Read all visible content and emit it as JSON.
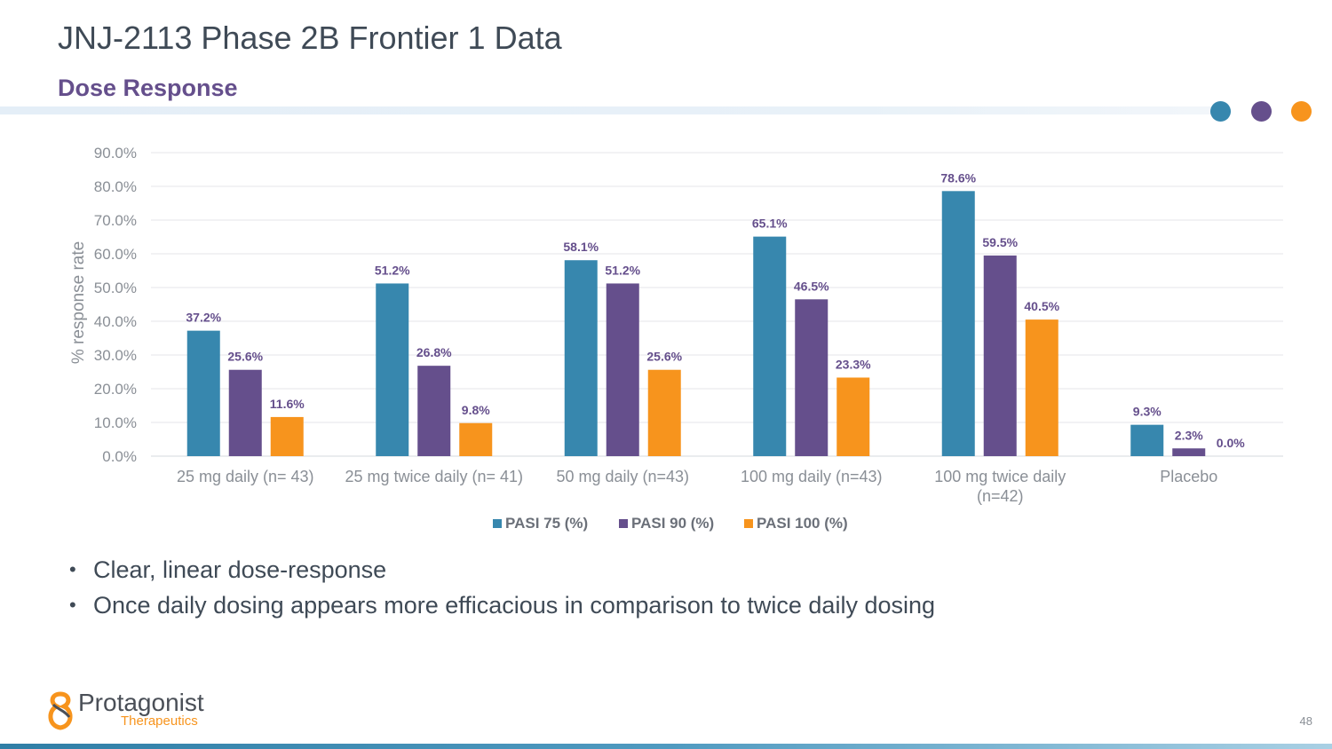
{
  "slide": {
    "title": "JNJ-2113 Phase 2B Frontier 1 Data",
    "subtitle": "Dose Response",
    "page_number": "48"
  },
  "bullets": [
    "Clear, linear dose-response",
    "Once daily dosing appears more efficacious in comparison to twice daily dosing"
  ],
  "bullet_glyph": "•",
  "logo": {
    "name": "Protagonist",
    "tagline": "Therapeutics"
  },
  "colors": {
    "teal": "#3787ae",
    "purple": "#654f8c",
    "orange": "#f7941d",
    "text": "#3f4a56"
  },
  "chart_data": {
    "type": "bar",
    "title": "",
    "xlabel": "",
    "ylabel": "% response rate",
    "ylim": [
      0,
      90
    ],
    "ytick_step": 10,
    "ytick_labels": [
      "0.0%",
      "10.0%",
      "20.0%",
      "30.0%",
      "40.0%",
      "50.0%",
      "60.0%",
      "70.0%",
      "80.0%",
      "90.0%"
    ],
    "grid": true,
    "legend_position": "bottom",
    "categories": [
      [
        "25 mg daily (n= 43)"
      ],
      [
        "25 mg twice daily (n= 41)"
      ],
      [
        "50 mg daily (n=43)"
      ],
      [
        "100 mg daily (n=43)"
      ],
      [
        "100 mg twice daily",
        "(n=42)"
      ],
      [
        "Placebo"
      ]
    ],
    "series": [
      {
        "name": "PASI 75 (%)",
        "color": "#3787ae",
        "values": [
          37.2,
          51.2,
          58.1,
          65.1,
          78.6,
          9.3
        ],
        "labels": [
          "37.2%",
          "51.2%",
          "58.1%",
          "65.1%",
          "78.6%",
          "9.3%"
        ]
      },
      {
        "name": "PASI 90 (%)",
        "color": "#654f8c",
        "values": [
          25.6,
          26.8,
          51.2,
          46.5,
          59.5,
          2.3
        ],
        "labels": [
          "25.6%",
          "26.8%",
          "51.2%",
          "46.5%",
          "59.5%",
          "2.3%"
        ]
      },
      {
        "name": "PASI 100 (%)",
        "color": "#f7941d",
        "values": [
          11.6,
          9.8,
          25.6,
          23.3,
          40.5,
          0.0
        ],
        "labels": [
          "11.6%",
          "9.8%",
          "25.6%",
          "23.3%",
          "40.5%",
          "0.0%"
        ]
      }
    ]
  }
}
